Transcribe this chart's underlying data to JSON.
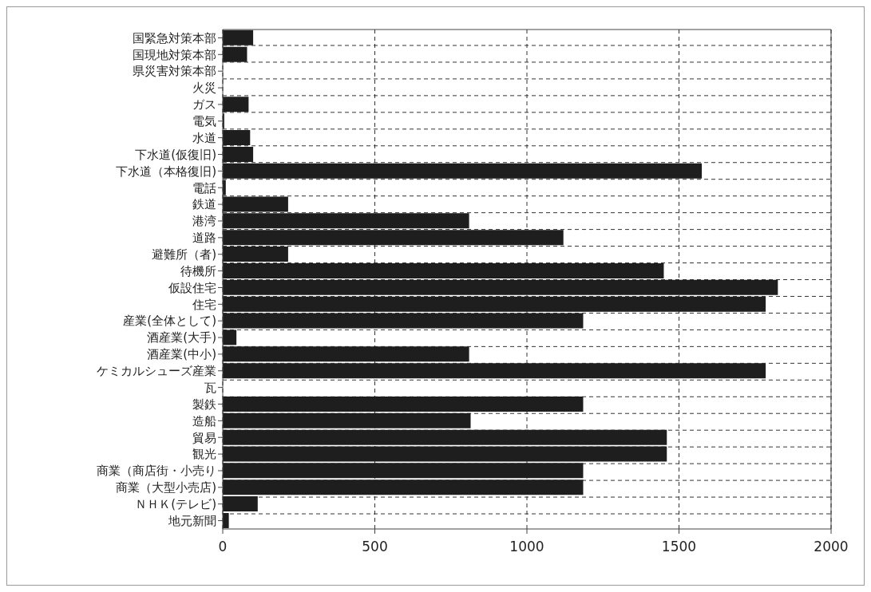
{
  "chart_data": {
    "type": "bar",
    "orientation": "horizontal",
    "categories": [
      "国緊急対策本部",
      "国現地対策本部",
      "県災害対策本部",
      "火災",
      "ガス",
      "電気",
      "水道",
      "下水道(仮復旧)",
      "下水道（本格復旧)",
      "電話",
      "鉄道",
      "港湾",
      "道路",
      "避難所（者)",
      "待機所",
      "仮設住宅",
      "住宅",
      "産業(全体として)",
      "酒産業(大手)",
      "酒産業(中小)",
      "ケミカルシューズ産業",
      "瓦",
      "製鉄",
      "造船",
      "貿易",
      "観光",
      "商業（商店街・小売り",
      "商業（大型小売店)",
      "ＮＨＫ(テレビ)",
      "地元新聞"
    ],
    "values": [
      100,
      80,
      0,
      0,
      85,
      5,
      90,
      100,
      1575,
      10,
      215,
      810,
      1120,
      215,
      1450,
      1825,
      1785,
      1185,
      45,
      810,
      1785,
      0,
      1185,
      815,
      1460,
      1460,
      1185,
      1185,
      115,
      20
    ],
    "color": "#1e1e1e",
    "xlim": [
      0,
      2000
    ],
    "xticks": [
      0,
      500,
      1000,
      1500,
      2000
    ],
    "grid": true
  }
}
